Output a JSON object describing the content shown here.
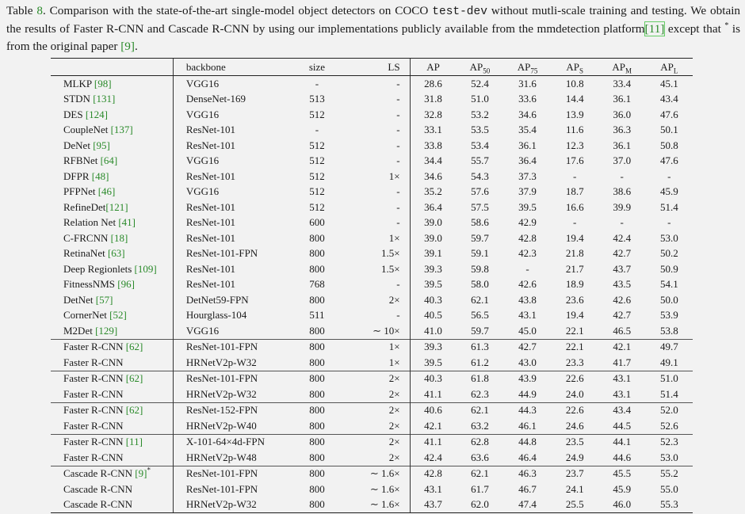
{
  "caption": {
    "table_word": "Table",
    "table_num": "8",
    "part1": ". Comparison with the state-of-the-art single-model object detectors on COCO ",
    "test_dev": "test-dev",
    "part2": " without mutli-scale training and testing. We obtain the results of Faster R-CNN and Cascade R-CNN by using our implementations publicly available from the mmdetection platform",
    "cite_a": "[11]",
    "part3": " except that ",
    "star": "*",
    "part4": " is from the original paper ",
    "cite_b": "[9]",
    "part5": "."
  },
  "headers": {
    "backbone": "backbone",
    "size": "size",
    "ls": "LS",
    "ap": "AP",
    "ap50": "AP",
    "ap50_sub": "50",
    "ap75": "AP",
    "ap75_sub": "75",
    "aps": "AP",
    "aps_sub": "S",
    "apm": "AP",
    "apm_sub": "M",
    "apl": "AP",
    "apl_sub": "L"
  },
  "rows": [
    {
      "method": "MLKP ",
      "cite": "[98]",
      "backbone": "VGG16",
      "size": "-",
      "ls": "-",
      "ap": "28.6",
      "ap50": "52.4",
      "ap75": "31.6",
      "aps": "10.8",
      "apm": "33.4",
      "apl": "45.1"
    },
    {
      "method": "STDN ",
      "cite": "[131]",
      "backbone": "DenseNet-169",
      "size": "513",
      "ls": "-",
      "ap": "31.8",
      "ap50": "51.0",
      "ap75": "33.6",
      "aps": "14.4",
      "apm": "36.1",
      "apl": "43.4"
    },
    {
      "method": "DES ",
      "cite": "[124]",
      "backbone": "VGG16",
      "size": "512",
      "ls": "-",
      "ap": "32.8",
      "ap50": "53.2",
      "ap75": "34.6",
      "aps": "13.9",
      "apm": "36.0",
      "apl": "47.6"
    },
    {
      "method": "CoupleNet ",
      "cite": "[137]",
      "backbone": "ResNet-101",
      "size": "-",
      "ls": "-",
      "ap": "33.1",
      "ap50": "53.5",
      "ap75": "35.4",
      "aps": "11.6",
      "apm": "36.3",
      "apl": "50.1"
    },
    {
      "method": "DeNet ",
      "cite": "[95]",
      "backbone": "ResNet-101",
      "size": "512",
      "ls": "-",
      "ap": "33.8",
      "ap50": "53.4",
      "ap75": "36.1",
      "aps": "12.3",
      "apm": "36.1",
      "apl": "50.8"
    },
    {
      "method": "RFBNet ",
      "cite": "[64]",
      "backbone": "VGG16",
      "size": "512",
      "ls": "-",
      "ap": "34.4",
      "ap50": "55.7",
      "ap75": "36.4",
      "aps": "17.6",
      "apm": "37.0",
      "apl": "47.6"
    },
    {
      "method": "DFPR ",
      "cite": "[48]",
      "backbone": "ResNet-101",
      "size": "512",
      "ls": "1×",
      "ap": "34.6",
      "ap50": "54.3",
      "ap75": "37.3",
      "aps": "-",
      "apm": "-",
      "apl": "-"
    },
    {
      "method": "PFPNet ",
      "cite": "[46]",
      "backbone": "VGG16",
      "size": "512",
      "ls": "-",
      "ap": "35.2",
      "ap50": "57.6",
      "ap75": "37.9",
      "aps": "18.7",
      "apm": "38.6",
      "apl": "45.9"
    },
    {
      "method": "RefineDet",
      "cite": "[121]",
      "backbone": "ResNet-101",
      "size": "512",
      "ls": "-",
      "ap": "36.4",
      "ap50": "57.5",
      "ap75": "39.5",
      "aps": "16.6",
      "apm": "39.9",
      "apl": "51.4"
    },
    {
      "method": "Relation Net ",
      "cite": "[41]",
      "backbone": "ResNet-101",
      "size": "600",
      "ls": "-",
      "ap": "39.0",
      "ap50": "58.6",
      "ap75": "42.9",
      "aps": "-",
      "apm": "-",
      "apl": "-"
    },
    {
      "method": "C-FRCNN ",
      "cite": "[18]",
      "backbone": "ResNet-101",
      "size": "800",
      "ls": "1×",
      "ap": "39.0",
      "ap50": "59.7",
      "ap75": "42.8",
      "aps": "19.4",
      "apm": "42.4",
      "apl": "53.0"
    },
    {
      "method": "RetinaNet ",
      "cite": "[63]",
      "backbone": "ResNet-101-FPN",
      "size": "800",
      "ls": "1.5×",
      "ap": "39.1",
      "ap50": "59.1",
      "ap75": "42.3",
      "aps": "21.8",
      "apm": "42.7",
      "apl": "50.2"
    },
    {
      "method": "Deep Regionlets ",
      "cite": "[109]",
      "backbone": "ResNet-101",
      "size": "800",
      "ls": "1.5×",
      "ap": "39.3",
      "ap50": "59.8",
      "ap75": "-",
      "aps": "21.7",
      "apm": "43.7",
      "apl": "50.9"
    },
    {
      "method": "FitnessNMS ",
      "cite": "[96]",
      "backbone": "ResNet-101",
      "size": "768",
      "ls": "-",
      "ap": "39.5",
      "ap50": "58.0",
      "ap75": "42.6",
      "aps": "18.9",
      "apm": "43.5",
      "apl": "54.1"
    },
    {
      "method": "DetNet ",
      "cite": "[57]",
      "backbone": "DetNet59-FPN",
      "size": "800",
      "ls": "2×",
      "ap": "40.3",
      "ap50": "62.1",
      "ap75": "43.8",
      "aps": "23.6",
      "apm": "42.6",
      "apl": "50.0"
    },
    {
      "method": "CornerNet ",
      "cite": "[52]",
      "backbone": "Hourglass-104",
      "size": "511",
      "ls": "-",
      "ap": "40.5",
      "ap50": "56.5",
      "ap75": "43.1",
      "aps": "19.4",
      "apm": "42.7",
      "apl": "53.9"
    },
    {
      "method": "M2Det ",
      "cite": "[129]",
      "backbone": "VGG16",
      "size": "800",
      "ls": "∼ 10×",
      "ap": "41.0",
      "ap50": "59.7",
      "ap75": "45.0",
      "aps": "22.1",
      "apm": "46.5",
      "apl": "53.8",
      "bold": [
        "apm"
      ]
    },
    {
      "method": "Faster R-CNN ",
      "cite": "[62]",
      "backbone": "ResNet-101-FPN",
      "size": "800",
      "ls": "1×",
      "ap": "39.3",
      "ap50": "61.3",
      "ap75": "42.7",
      "aps": "22.1",
      "apm": "42.1",
      "apl": "49.7",
      "group_start": true
    },
    {
      "method": "Faster R-CNN",
      "cite": "",
      "backbone": "HRNetV2p-W32",
      "size": "800",
      "ls": "1×",
      "ap": "39.5",
      "ap50": "61.2",
      "ap75": "43.0",
      "aps": "23.3",
      "apm": "41.7",
      "apl": "49.1"
    },
    {
      "method": "Faster R-CNN ",
      "cite": "[62]",
      "backbone": "ResNet-101-FPN",
      "size": "800",
      "ls": "2×",
      "ap": "40.3",
      "ap50": "61.8",
      "ap75": "43.9",
      "aps": "22.6",
      "apm": "43.1",
      "apl": "51.0",
      "group_start": true
    },
    {
      "method": "Faster R-CNN",
      "cite": "",
      "backbone": "HRNetV2p-W32",
      "size": "800",
      "ls": "2×",
      "ap": "41.1",
      "ap50": "62.3",
      "ap75": "44.9",
      "aps": "24.0",
      "apm": "43.1",
      "apl": "51.4"
    },
    {
      "method": "Faster R-CNN ",
      "cite": "[62]",
      "backbone": "ResNet-152-FPN",
      "size": "800",
      "ls": "2×",
      "ap": "40.6",
      "ap50": "62.1",
      "ap75": "44.3",
      "aps": "22.6",
      "apm": "43.4",
      "apl": "52.0",
      "group_start": true
    },
    {
      "method": "Faster R-CNN",
      "cite": "",
      "backbone": "HRNetV2p-W40",
      "size": "800",
      "ls": "2×",
      "ap": "42.1",
      "ap50": "63.2",
      "ap75": "46.1",
      "aps": "24.6",
      "apm": "44.5",
      "apl": "52.6"
    },
    {
      "method": "Faster R-CNN ",
      "cite": "[11]",
      "backbone": "X-101-64×4d-FPN",
      "size": "800",
      "ls": "2×",
      "ap": "41.1",
      "ap50": "62.8",
      "ap75": "44.8",
      "aps": "23.5",
      "apm": "44.1",
      "apl": "52.3",
      "group_start": true
    },
    {
      "method": "Faster R-CNN",
      "cite": "",
      "backbone": "HRNetV2p-W48",
      "size": "800",
      "ls": "2×",
      "ap": "42.4",
      "ap50": "63.6",
      "ap75": "46.4",
      "aps": "24.9",
      "apm": "44.6",
      "apl": "53.0",
      "bold": [
        "ap50"
      ]
    },
    {
      "method": "Cascade R-CNN ",
      "cite": "[9]",
      "star": "*",
      "backbone": "ResNet-101-FPN",
      "size": "800",
      "ls": "∼ 1.6×",
      "ap": "42.8",
      "ap50": "62.1",
      "ap75": "46.3",
      "aps": "23.7",
      "apm": "45.5",
      "apl": "55.2",
      "group_start": true
    },
    {
      "method": "Cascade R-CNN",
      "cite": "",
      "backbone": "ResNet-101-FPN",
      "size": "800",
      "ls": "∼ 1.6×",
      "ap": "43.1",
      "ap50": "61.7",
      "ap75": "46.7",
      "aps": "24.1",
      "apm": "45.9",
      "apl": "55.0"
    },
    {
      "method": "Cascade R-CNN",
      "cite": "",
      "backbone": "HRNetV2p-W32",
      "size": "800",
      "ls": "∼ 1.6×",
      "ap": "43.7",
      "ap50": "62.0",
      "ap75": "47.4",
      "aps": "25.5",
      "apm": "46.0",
      "apl": "55.3",
      "bold": [
        "ap",
        "ap75",
        "aps",
        "apl"
      ]
    }
  ]
}
